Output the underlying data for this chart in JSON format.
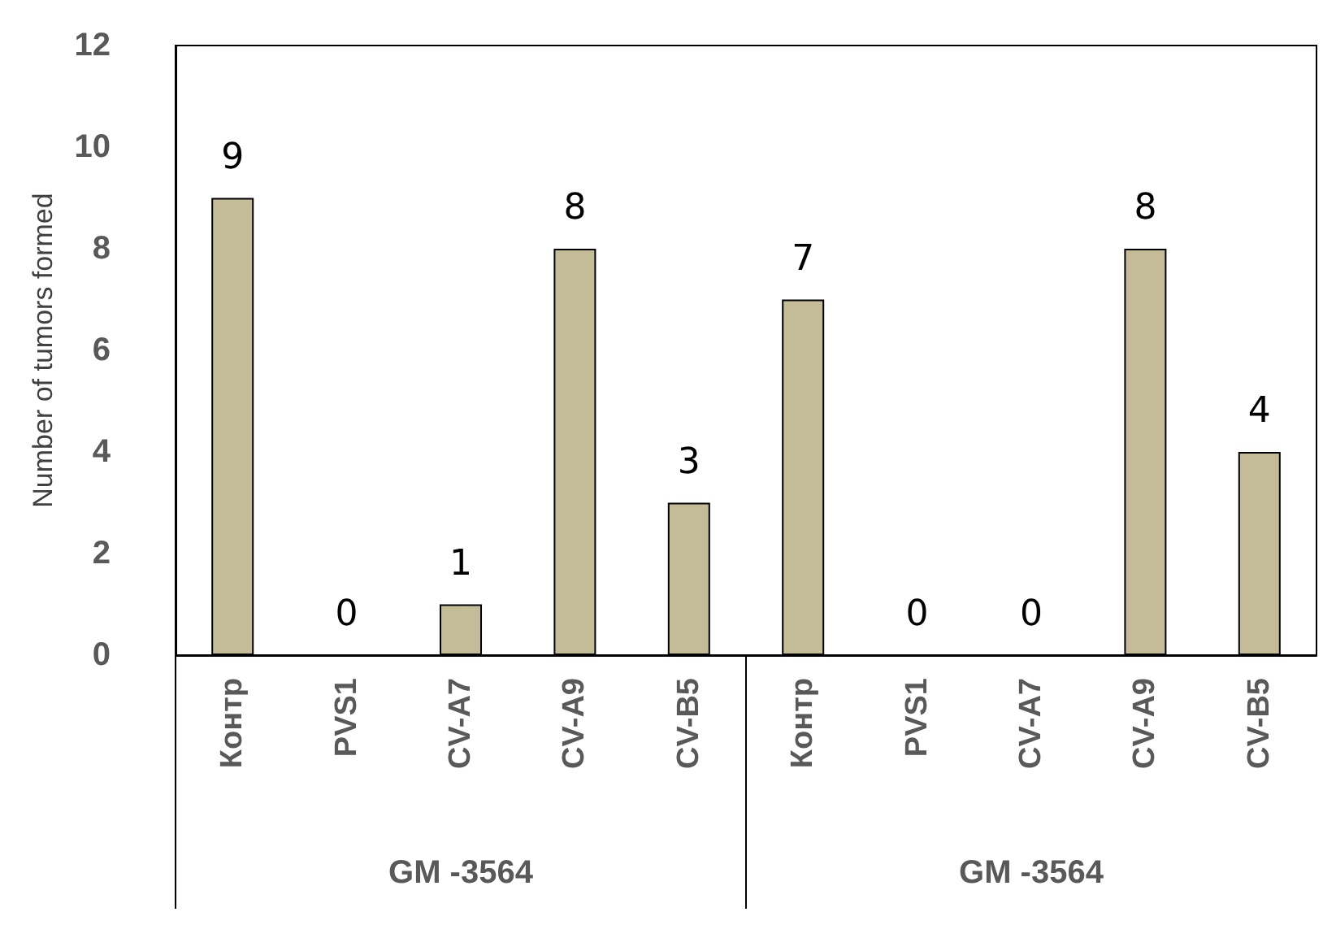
{
  "chart_data": {
    "type": "bar",
    "ylabel": "Number of tumors formed",
    "categories": [
      "Контр",
      "PVS1",
      "CV-A7",
      "CV-A9",
      "CV-B5",
      "Контр",
      "PVS1",
      "CV-A7",
      "CV-A9",
      "CV-B5"
    ],
    "values": [
      9,
      0,
      1,
      8,
      3,
      7,
      0,
      0,
      8,
      4
    ],
    "color": "#c4bc96",
    "ylim": [
      0,
      12
    ],
    "yticks": [
      0,
      2,
      4,
      6,
      8,
      10,
      12
    ],
    "grid": false,
    "data_labels": true,
    "annotations": [
      "GM -3564",
      "GM -3564"
    ]
  }
}
